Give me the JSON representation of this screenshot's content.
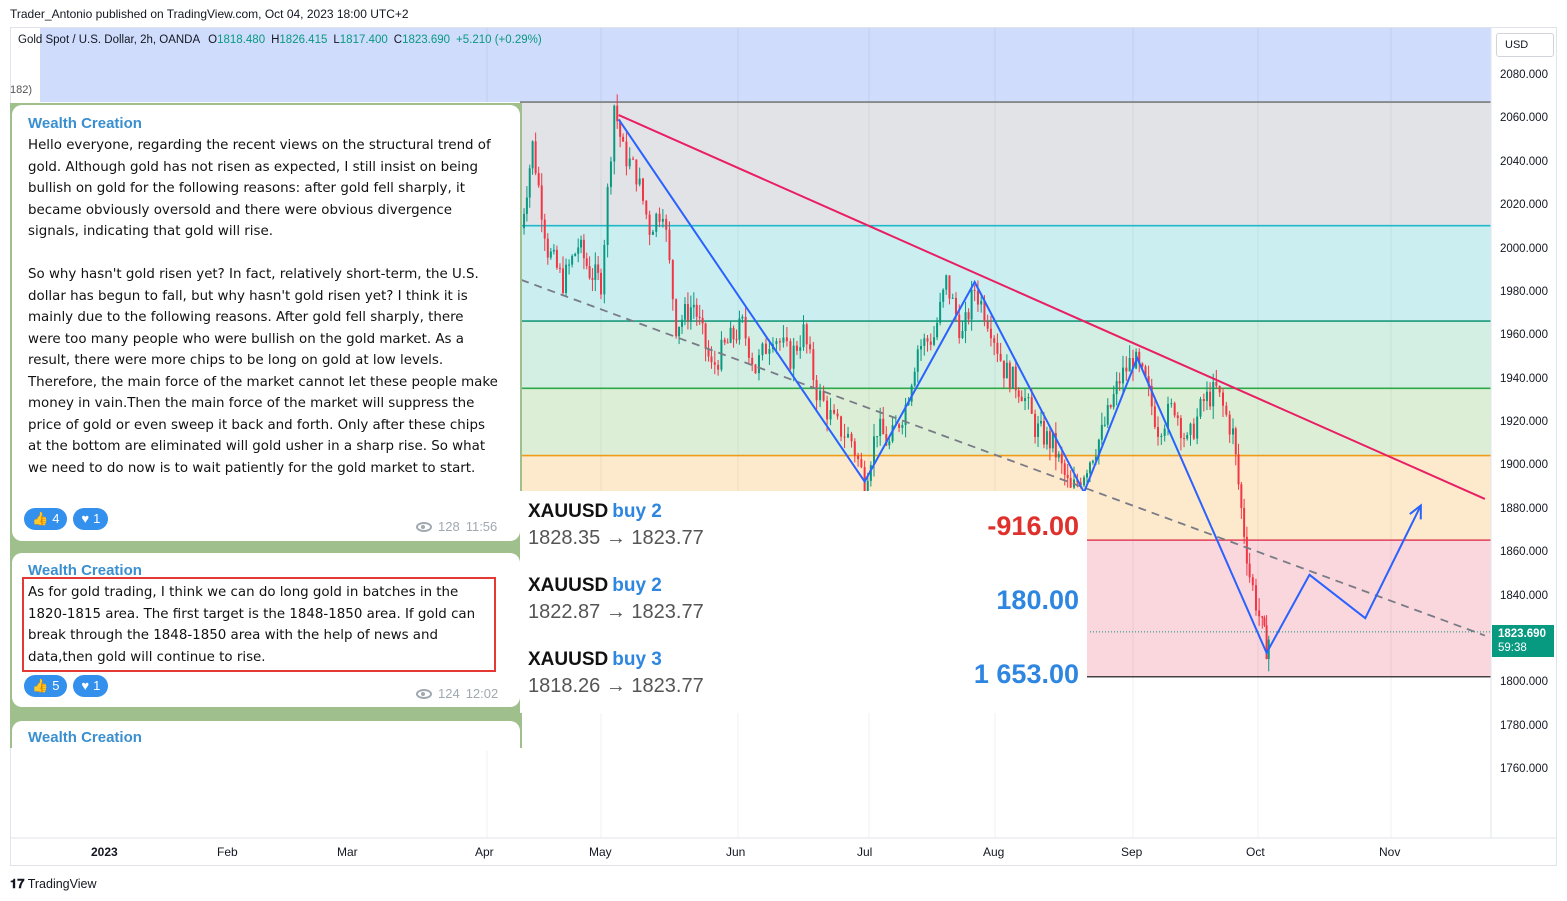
{
  "header": {
    "published_by": "Trader_Antonio published on TradingView.com, Oct 04, 2023 18:00 UTC+2",
    "symbol_line": "Gold Spot / U.S. Dollar, 2h, OANDA",
    "ohlc": {
      "o_label": "O",
      "o": "1818.480",
      "h_label": "H",
      "h": "1826.415",
      "l_label": "L",
      "l": "1817.400",
      "c_label": "C",
      "c": "1823.690",
      "change": "+5.210 (+0.29%)"
    },
    "indicator_fragment": "182)",
    "currency": "USD",
    "brand": "TradingView"
  },
  "current_price": {
    "value": "1823.690",
    "countdown": "59:38"
  },
  "chart_data": {
    "type": "line",
    "ylim": [
      1750,
      2090
    ],
    "yticks": [
      "2080.000",
      "2060.000",
      "2040.000",
      "2020.000",
      "2000.000",
      "1980.000",
      "1960.000",
      "1940.000",
      "1920.000",
      "1900.000",
      "1880.000",
      "1860.000",
      "1840.000",
      "1820.000",
      "1800.000",
      "1780.000",
      "1760.000"
    ],
    "x_ticks": [
      "2023",
      "Feb",
      "Mar",
      "Apr",
      "May",
      "Jun",
      "Jul",
      "Aug",
      "Sep",
      "Oct",
      "Nov"
    ],
    "horizontal_levels": [
      {
        "price": 2068,
        "color": "#7b7b7b"
      },
      {
        "price": 2011,
        "color": "#1fb8c9"
      },
      {
        "price": 1967,
        "color": "#1a9a7c"
      },
      {
        "price": 1936,
        "color": "#2ea84a"
      },
      {
        "price": 1905,
        "color": "#f09a1a"
      },
      {
        "price": 1866,
        "color": "#e0405a"
      },
      {
        "price": 1803,
        "color": "#444444"
      }
    ],
    "price_path": [
      [
        "Apr 10",
        2010
      ],
      [
        "Apr 13",
        2048
      ],
      [
        "Apr 17",
        2000
      ],
      [
        "Apr 21",
        1985
      ],
      [
        "Apr 25",
        2002
      ],
      [
        "Apr 28",
        1990
      ],
      [
        "May 1",
        1985
      ],
      [
        "May 4",
        2067
      ],
      [
        "May 6",
        2045
      ],
      [
        "May 9",
        2035
      ],
      [
        "May 12",
        2010
      ],
      [
        "May 15",
        2020
      ],
      [
        "May 18",
        1965
      ],
      [
        "May 22",
        1975
      ],
      [
        "May 26",
        1945
      ],
      [
        "May 29",
        1955
      ],
      [
        "Jun 2",
        1965
      ],
      [
        "Jun 5",
        1945
      ],
      [
        "Jun 9",
        1962
      ],
      [
        "Jun 13",
        1950
      ],
      [
        "Jun 16",
        1962
      ],
      [
        "Jun 19",
        1935
      ],
      [
        "Jun 23",
        1920
      ],
      [
        "Jun 27",
        1912
      ],
      [
        "Jun 30",
        1893
      ],
      [
        "Jul 3",
        1918
      ],
      [
        "Jul 6",
        1910
      ],
      [
        "Jul 10",
        1928
      ],
      [
        "Jul 13",
        1955
      ],
      [
        "Jul 17",
        1960
      ],
      [
        "Jul 20",
        1985
      ],
      [
        "Jul 24",
        1960
      ],
      [
        "Jul 27",
        1982
      ],
      [
        "Jul 31",
        1965
      ],
      [
        "Aug 3",
        1945
      ],
      [
        "Aug 7",
        1935
      ],
      [
        "Aug 10",
        1918
      ],
      [
        "Aug 14",
        1910
      ],
      [
        "Aug 18",
        1888
      ],
      [
        "Aug 21",
        1898
      ],
      [
        "Aug 25",
        1915
      ],
      [
        "Aug 29",
        1940
      ],
      [
        "Sep 1",
        1950
      ],
      [
        "Sep 4",
        1938
      ],
      [
        "Sep 7",
        1918
      ],
      [
        "Sep 11",
        1928
      ],
      [
        "Sep 14",
        1910
      ],
      [
        "Sep 18",
        1930
      ],
      [
        "Sep 21",
        1935
      ],
      [
        "Sep 25",
        1915
      ],
      [
        "Sep 27",
        1880
      ],
      [
        "Sep 29",
        1850
      ],
      [
        "Oct 2",
        1825
      ],
      [
        "Oct 3",
        1817
      ],
      [
        "Oct 4",
        1824
      ]
    ],
    "wave_path": [
      [
        "May 5",
        2060
      ],
      [
        "Jun 30",
        1893
      ],
      [
        "Jul 27",
        1985
      ],
      [
        "Aug 21",
        1888
      ],
      [
        "Sep 2",
        1950
      ],
      [
        "Oct 3",
        1814
      ],
      [
        "Oct 13",
        1850
      ],
      [
        "Oct 26",
        1830
      ],
      [
        "Nov 8",
        1882
      ]
    ],
    "resistance_line": [
      [
        "May 5",
        2062
      ],
      [
        "Nov 23",
        1885
      ]
    ],
    "dashed_trend_line": [
      [
        "Apr 10",
        1986
      ],
      [
        "Nov 23",
        1822
      ]
    ]
  },
  "chat": {
    "messages": [
      {
        "author": "Wealth Creation",
        "text": "Hello everyone, regarding the recent views on the structural trend of gold. Although gold has not risen as expected, I still insist on being bullish on gold for the following reasons: after gold fell sharply, it became obviously oversold and there were obvious divergence signals, indicating that gold will rise.\n\nSo why hasn't gold risen yet? In fact, relatively short-term, the U.S. dollar has begun to fall, but why hasn't gold risen yet? I think it is mainly due to the following reasons. After gold fell sharply, there were too many people who were bullish on the gold market. As a result, there were more chips to be long on gold at low levels. Therefore, the main force of the market cannot let these people make money in vain.Then the main force of the market will suppress the price of gold or even sweep it back and forth. Only after these chips at the bottom are eliminated will gold usher in a sharp rise. So what we need to do now is to wait patiently for the gold market to start.",
        "likes": "4",
        "hearts": "1",
        "views": "128",
        "time": "11:56"
      },
      {
        "author": "Wealth Creation",
        "text": "As for gold trading, I think we can do long gold in batches in the 1820-1815 area. The first target is the 1848-1850 area. If gold can break through the 1848-1850 area with the help of news and data,then gold will continue to rise.",
        "likes": "5",
        "hearts": "1",
        "views": "124",
        "time": "12:02"
      },
      {
        "author": "Wealth Creation"
      }
    ]
  },
  "trades": [
    {
      "symbol": "XAUUSD",
      "side": "buy 2",
      "prices": "1828.35 → 1823.77",
      "pnl": "-916.00"
    },
    {
      "symbol": "XAUUSD",
      "side": "buy 2",
      "prices": "1822.87 → 1823.77",
      "pnl": "180.00"
    },
    {
      "symbol": "XAUUSD",
      "side": "buy 3",
      "prices": "1818.26 → 1823.77",
      "pnl": "1 653.00"
    }
  ]
}
